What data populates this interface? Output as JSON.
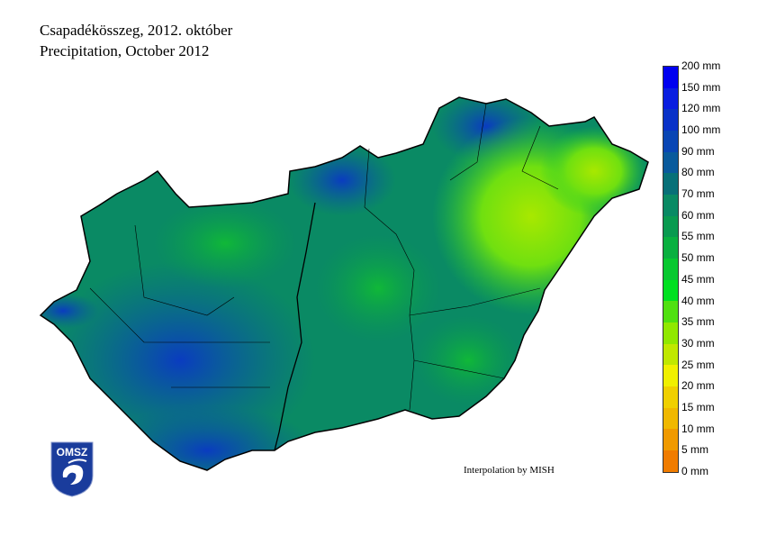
{
  "title": {
    "line1": "Csapadékösszeg, 2012. október",
    "line2": "Precipitation, October 2012"
  },
  "credit": "Interpolation by MISH",
  "logo": {
    "text": "OMSZ",
    "color": "#1a3c9c"
  },
  "legend": {
    "labels": [
      "200 mm",
      "150 mm",
      "120 mm",
      "100 mm",
      "90 mm",
      "80 mm",
      "70 mm",
      "60 mm",
      "55 mm",
      "50 mm",
      "45 mm",
      "40 mm",
      "35 mm",
      "30 mm",
      "25 mm",
      "20 mm",
      "15 mm",
      "10 mm",
      "5 mm",
      "0 mm"
    ],
    "colors": [
      "#0000f0",
      "#0a1ee0",
      "#0a32c8",
      "#0a46b4",
      "#0a5a9c",
      "#087078",
      "#0a8a64",
      "#0a9a50",
      "#0ab040",
      "#08c830",
      "#00e020",
      "#50e010",
      "#90e800",
      "#c0e800",
      "#f0f000",
      "#f0d000",
      "#f0b800",
      "#f09a00",
      "#f07c00"
    ]
  }
}
